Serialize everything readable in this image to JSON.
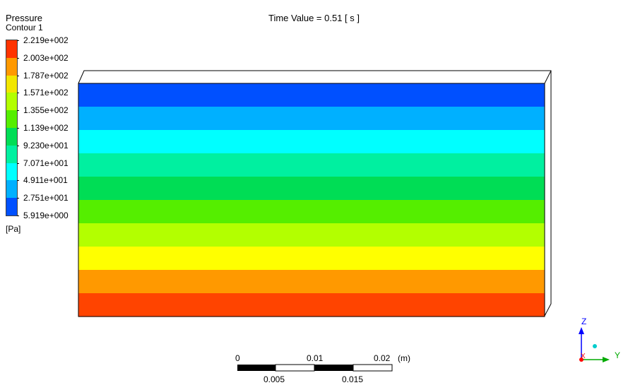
{
  "legend": {
    "title": "Pressure",
    "subtitle": "Contour 1",
    "unit": "[Pa]",
    "ticks": [
      "2.219e+002",
      "2.003e+002",
      "1.787e+002",
      "1.571e+002",
      "1.355e+002",
      "1.139e+002",
      "9.230e+001",
      "7.071e+001",
      "4.911e+001",
      "2.751e+001",
      "5.919e+000"
    ],
    "colors": [
      "#ff3300",
      "#ff9900",
      "#f2e600",
      "#b3ff00",
      "#55ee00",
      "#00dd55",
      "#00f0a0",
      "#00ffff",
      "#00b0ff",
      "#0050ff"
    ]
  },
  "header": {
    "time_value": "Time Value = 0.51 [ s ]"
  },
  "contour": {
    "bands_top_to_bottom": [
      "#0050ff",
      "#00b0ff",
      "#00ffff",
      "#00f0a0",
      "#00dd55",
      "#55ee00",
      "#b3ff00",
      "#ffff00",
      "#ff9900",
      "#ff4400"
    ]
  },
  "scale": {
    "top_labels": [
      "0",
      "0.01",
      "0.02"
    ],
    "unit": "(m)",
    "bottom_labels": [
      "0.005",
      "0.015"
    ]
  },
  "axes": {
    "z_label": "Z",
    "y_label": "Y",
    "x_label": "X",
    "z_color": "#0000ff",
    "y_color": "#00aa00",
    "x_color": "#ff0000"
  }
}
